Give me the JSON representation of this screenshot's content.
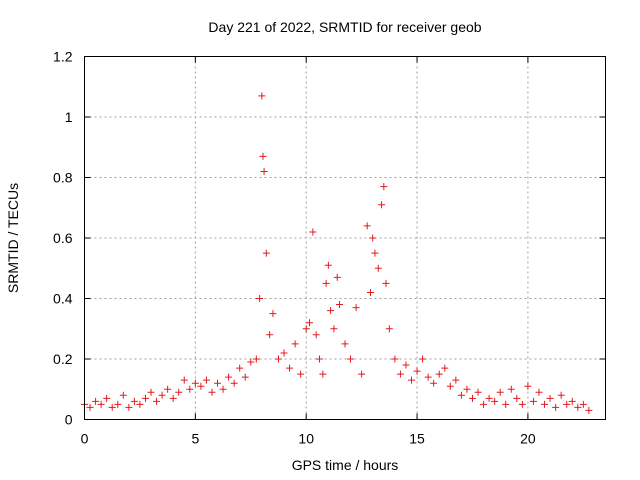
{
  "chart_data": {
    "type": "scatter",
    "title": "Day 221 of 2022, SRMTID for receiver geob",
    "xlabel": "GPS time / hours",
    "ylabel": "SRMTID / TECUs",
    "xlim": [
      0,
      23.5
    ],
    "ylim": [
      0,
      1.2
    ],
    "xticks": [
      0,
      5,
      10,
      15,
      20
    ],
    "xtick_labels": [
      "0",
      "5",
      "10",
      "15",
      "20"
    ],
    "yticks": [
      0,
      0.2,
      0.4,
      0.6,
      0.8,
      1.0,
      1.2
    ],
    "ytick_labels": [
      "0",
      "0.2",
      "0.4",
      "0.6",
      "0.8",
      "1",
      "1.2"
    ],
    "grid": true,
    "marker": "+",
    "series": [
      {
        "name": "SRMTID",
        "color": "#e41a1c",
        "x": [
          0.0,
          0.25,
          0.5,
          0.75,
          1.0,
          1.25,
          1.5,
          1.75,
          2.0,
          2.25,
          2.5,
          2.75,
          3.0,
          3.25,
          3.5,
          3.75,
          4.0,
          4.25,
          4.5,
          4.75,
          5.0,
          5.25,
          5.5,
          5.75,
          6.0,
          6.25,
          6.5,
          6.75,
          7.0,
          7.25,
          7.5,
          7.75,
          7.9,
          8.0,
          8.05,
          8.1,
          8.2,
          8.35,
          8.5,
          8.75,
          9.0,
          9.25,
          9.5,
          9.75,
          10.0,
          10.15,
          10.3,
          10.45,
          10.6,
          10.75,
          10.9,
          11.0,
          11.1,
          11.25,
          11.4,
          11.5,
          11.75,
          12.0,
          12.25,
          12.5,
          12.75,
          12.9,
          13.0,
          13.1,
          13.25,
          13.4,
          13.5,
          13.6,
          13.75,
          14.0,
          14.25,
          14.5,
          14.75,
          15.0,
          15.25,
          15.5,
          15.75,
          16.0,
          16.25,
          16.5,
          16.75,
          17.0,
          17.25,
          17.5,
          17.75,
          18.0,
          18.25,
          18.5,
          18.75,
          19.0,
          19.25,
          19.5,
          19.75,
          20.0,
          20.25,
          20.5,
          20.75,
          21.0,
          21.25,
          21.5,
          21.75,
          22.0,
          22.25,
          22.5,
          22.75
        ],
        "y": [
          0.05,
          0.04,
          0.06,
          0.05,
          0.07,
          0.04,
          0.05,
          0.08,
          0.04,
          0.06,
          0.05,
          0.07,
          0.09,
          0.06,
          0.08,
          0.1,
          0.07,
          0.09,
          0.13,
          0.1,
          0.12,
          0.11,
          0.13,
          0.09,
          0.12,
          0.1,
          0.14,
          0.12,
          0.17,
          0.14,
          0.19,
          0.2,
          0.4,
          1.07,
          0.87,
          0.82,
          0.55,
          0.28,
          0.35,
          0.2,
          0.22,
          0.17,
          0.25,
          0.15,
          0.3,
          0.32,
          0.62,
          0.28,
          0.2,
          0.15,
          0.45,
          0.51,
          0.36,
          0.3,
          0.47,
          0.38,
          0.25,
          0.2,
          0.37,
          0.15,
          0.64,
          0.42,
          0.6,
          0.55,
          0.5,
          0.71,
          0.77,
          0.45,
          0.3,
          0.2,
          0.15,
          0.18,
          0.13,
          0.16,
          0.2,
          0.14,
          0.12,
          0.15,
          0.17,
          0.11,
          0.13,
          0.08,
          0.1,
          0.07,
          0.09,
          0.05,
          0.07,
          0.06,
          0.09,
          0.05,
          0.1,
          0.07,
          0.05,
          0.11,
          0.06,
          0.09,
          0.05,
          0.07,
          0.04,
          0.08,
          0.05,
          0.06,
          0.04,
          0.05,
          0.03
        ]
      }
    ]
  }
}
